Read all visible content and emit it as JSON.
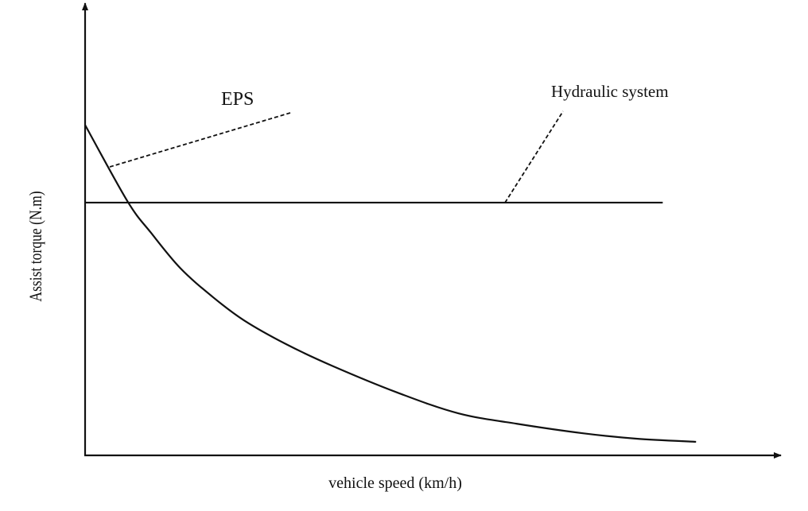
{
  "chart_data": {
    "type": "line",
    "title": "",
    "xlabel": "vehicle speed (km/h)",
    "ylabel": "Assist torque (N.m)",
    "xlim": [
      0,
      100
    ],
    "ylim": [
      0,
      100
    ],
    "grid": false,
    "ticks": "none",
    "series": [
      {
        "name": "EPS",
        "style": "solid",
        "x": [
          0,
          6.1,
          9.5,
          13.7,
          18.3,
          22.9,
          29.0,
          35.5,
          45.0,
          53.8,
          62.2,
          71.7,
          79.4,
          88.0
        ],
        "y": [
          73.2,
          56.3,
          49.3,
          41.5,
          35.2,
          29.9,
          24.6,
          19.9,
          13.9,
          9.3,
          7.0,
          4.9,
          3.7,
          3.0
        ]
      },
      {
        "name": "Hydraulic system",
        "style": "solid",
        "x": [
          0,
          83.2
        ],
        "y": [
          56.0,
          56.0
        ]
      }
    ],
    "annotations": [
      {
        "text": "EPS",
        "points_to": "EPS"
      },
      {
        "text": "Hydraulic system",
        "points_to": "Hydraulic system"
      }
    ]
  }
}
